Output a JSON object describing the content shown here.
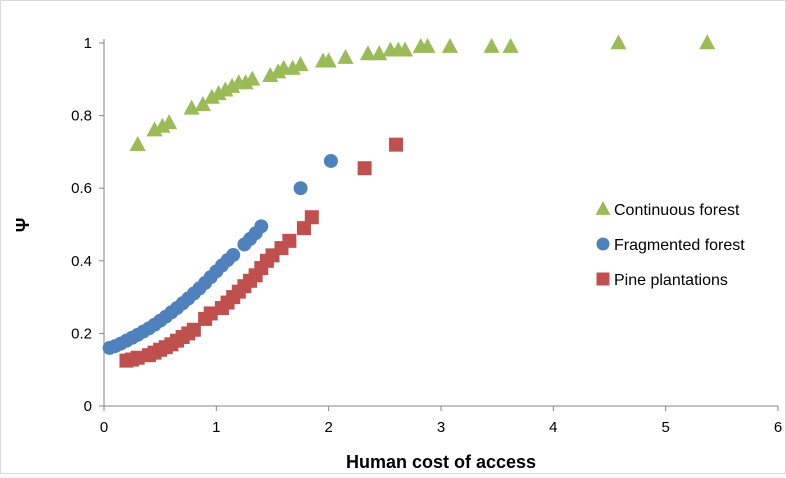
{
  "chart_data": {
    "type": "scatter",
    "title": "",
    "xlabel": "Human cost of access",
    "ylabel": "Ψ",
    "xlim": [
      0,
      6
    ],
    "ylim": [
      0,
      1
    ],
    "x_ticks": [
      "0",
      "1",
      "2",
      "3",
      "4",
      "5",
      "6"
    ],
    "y_ticks": [
      "0",
      "0.2",
      "0.4",
      "0.6",
      "0.8",
      "1"
    ],
    "x_tick_values": [
      0,
      1,
      2,
      3,
      4,
      5,
      6
    ],
    "y_tick_values": [
      0,
      0.2,
      0.4,
      0.6,
      0.8,
      1
    ],
    "grid": false,
    "legend_position": "right",
    "series": [
      {
        "name": "Continuous forest",
        "marker": "triangle",
        "color": "#9bbb59",
        "points": [
          [
            0.3,
            0.72
          ],
          [
            0.45,
            0.76
          ],
          [
            0.52,
            0.77
          ],
          [
            0.58,
            0.78
          ],
          [
            0.78,
            0.82
          ],
          [
            0.88,
            0.83
          ],
          [
            0.96,
            0.85
          ],
          [
            1.02,
            0.86
          ],
          [
            1.08,
            0.87
          ],
          [
            1.14,
            0.88
          ],
          [
            1.2,
            0.89
          ],
          [
            1.26,
            0.89
          ],
          [
            1.32,
            0.9
          ],
          [
            1.48,
            0.91
          ],
          [
            1.55,
            0.92
          ],
          [
            1.6,
            0.93
          ],
          [
            1.68,
            0.93
          ],
          [
            1.75,
            0.94
          ],
          [
            1.95,
            0.95
          ],
          [
            2.0,
            0.95
          ],
          [
            2.15,
            0.96
          ],
          [
            2.35,
            0.97
          ],
          [
            2.45,
            0.97
          ],
          [
            2.55,
            0.98
          ],
          [
            2.62,
            0.98
          ],
          [
            2.68,
            0.98
          ],
          [
            2.82,
            0.99
          ],
          [
            2.88,
            0.99
          ],
          [
            3.08,
            0.99
          ],
          [
            3.45,
            0.99
          ],
          [
            3.62,
            0.99
          ],
          [
            4.58,
            1.0
          ],
          [
            5.37,
            1.0
          ]
        ]
      },
      {
        "name": "Fragmented forest",
        "marker": "circle",
        "color": "#4f81bd",
        "points": [
          [
            0.05,
            0.16
          ],
          [
            0.1,
            0.165
          ],
          [
            0.15,
            0.172
          ],
          [
            0.2,
            0.18
          ],
          [
            0.25,
            0.188
          ],
          [
            0.3,
            0.196
          ],
          [
            0.35,
            0.205
          ],
          [
            0.4,
            0.214
          ],
          [
            0.45,
            0.224
          ],
          [
            0.5,
            0.235
          ],
          [
            0.55,
            0.246
          ],
          [
            0.6,
            0.258
          ],
          [
            0.65,
            0.27
          ],
          [
            0.7,
            0.283
          ],
          [
            0.75,
            0.296
          ],
          [
            0.8,
            0.31
          ],
          [
            0.85,
            0.324
          ],
          [
            0.9,
            0.339
          ],
          [
            0.95,
            0.355
          ],
          [
            1.0,
            0.371
          ],
          [
            1.05,
            0.387
          ],
          [
            1.1,
            0.402
          ],
          [
            1.15,
            0.416
          ],
          [
            1.25,
            0.445
          ],
          [
            1.3,
            0.46
          ],
          [
            1.35,
            0.476
          ],
          [
            1.4,
            0.495
          ],
          [
            1.75,
            0.6
          ],
          [
            2.02,
            0.675
          ]
        ]
      },
      {
        "name": "Pine plantations",
        "marker": "square",
        "color": "#c0504d",
        "points": [
          [
            0.2,
            0.125
          ],
          [
            0.25,
            0.128
          ],
          [
            0.3,
            0.133
          ],
          [
            0.4,
            0.14
          ],
          [
            0.45,
            0.147
          ],
          [
            0.5,
            0.155
          ],
          [
            0.55,
            0.162
          ],
          [
            0.6,
            0.17
          ],
          [
            0.65,
            0.18
          ],
          [
            0.7,
            0.19
          ],
          [
            0.75,
            0.2
          ],
          [
            0.8,
            0.21
          ],
          [
            0.9,
            0.24
          ],
          [
            0.95,
            0.255
          ],
          [
            1.05,
            0.27
          ],
          [
            1.1,
            0.285
          ],
          [
            1.15,
            0.3
          ],
          [
            1.2,
            0.315
          ],
          [
            1.25,
            0.33
          ],
          [
            1.3,
            0.345
          ],
          [
            1.35,
            0.36
          ],
          [
            1.4,
            0.38
          ],
          [
            1.45,
            0.4
          ],
          [
            1.5,
            0.415
          ],
          [
            1.58,
            0.435
          ],
          [
            1.65,
            0.455
          ],
          [
            1.78,
            0.49
          ],
          [
            1.85,
            0.52
          ],
          [
            2.32,
            0.655
          ],
          [
            2.6,
            0.72
          ]
        ]
      }
    ]
  }
}
